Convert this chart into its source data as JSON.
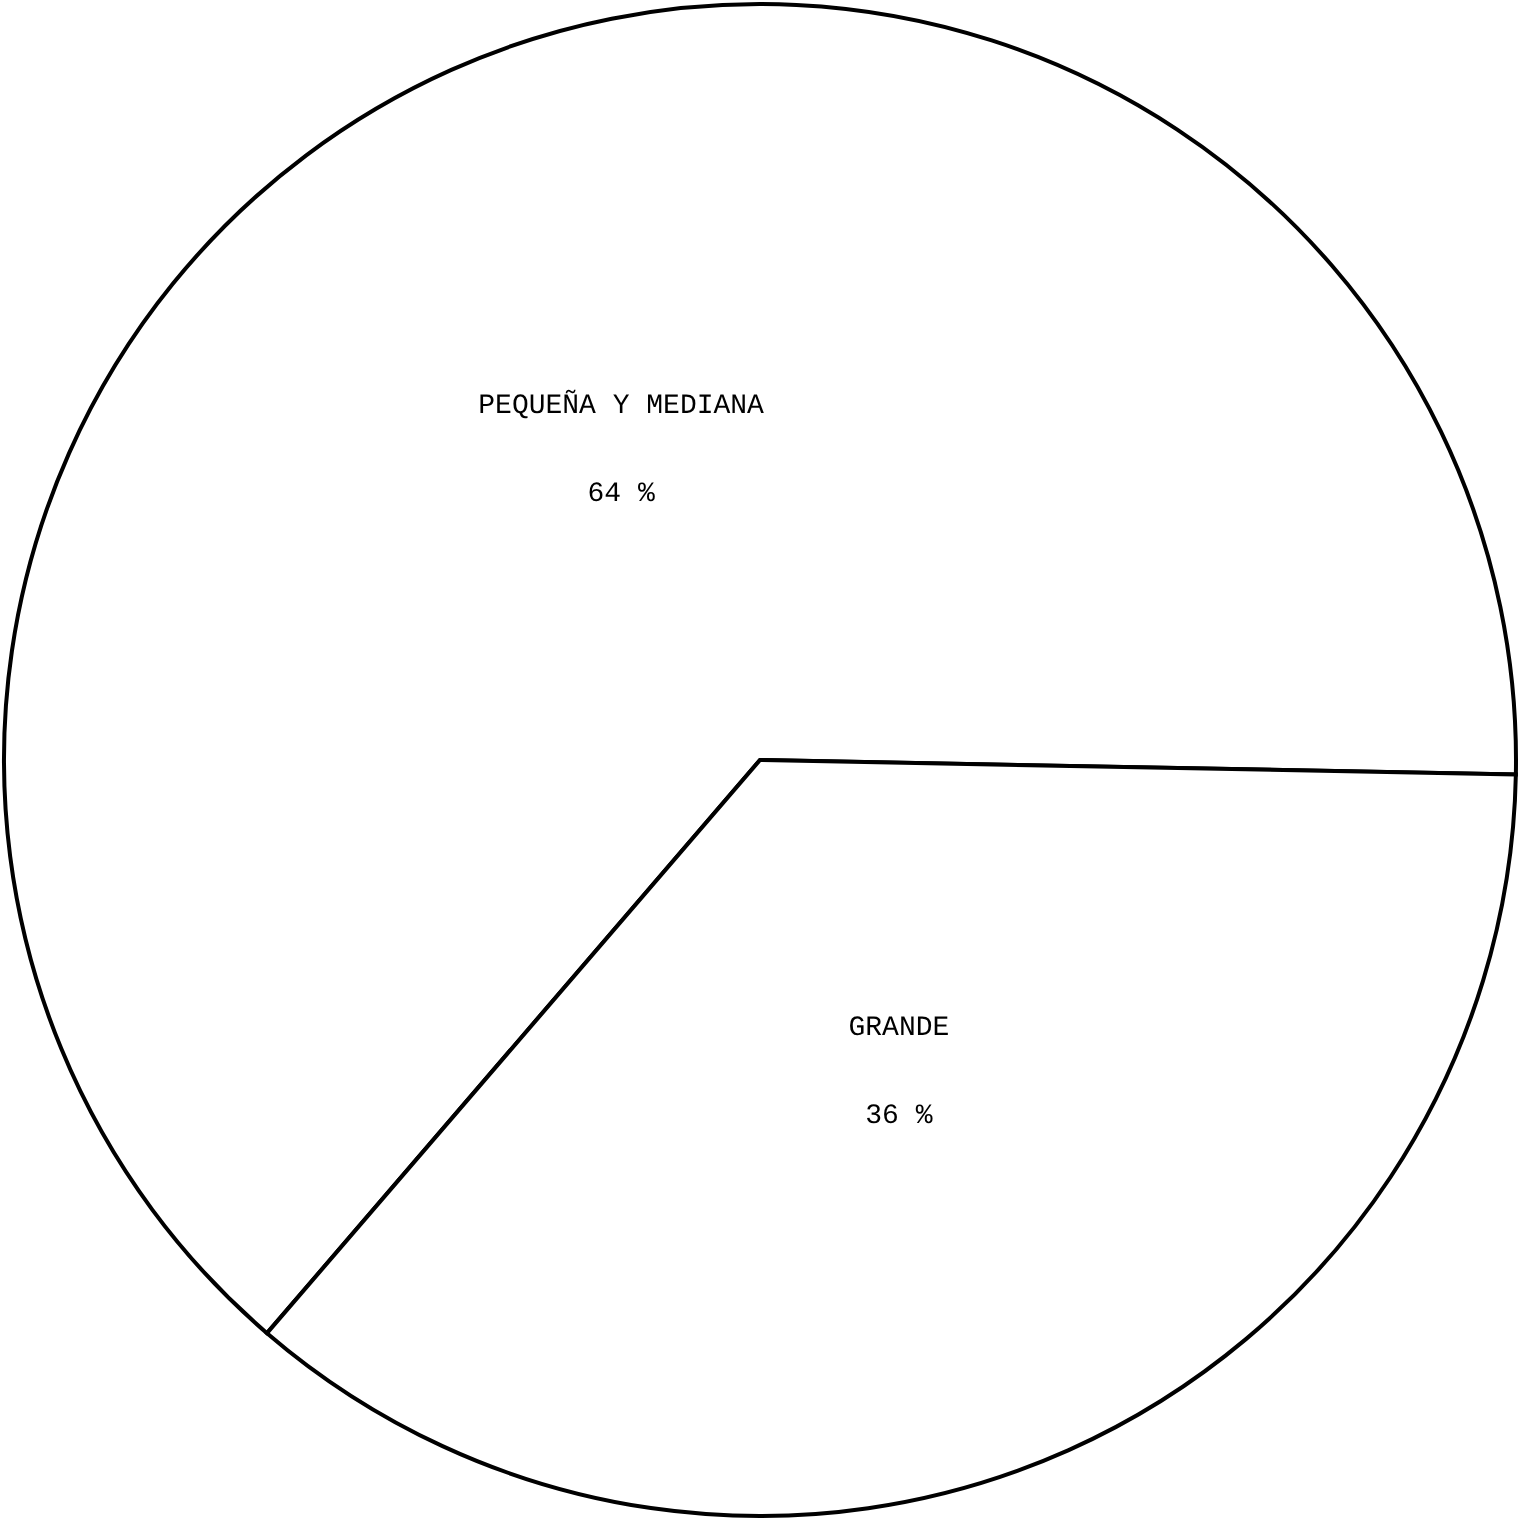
{
  "chart_data": {
    "type": "pie",
    "categories": [
      "PEQUEÑA  Y MEDIANA",
      "GRANDE"
    ],
    "values": [
      64,
      36
    ],
    "colors": [
      "#ffffff",
      "#ffffff"
    ],
    "value_labels": [
      "64 %",
      "36 %"
    ]
  }
}
